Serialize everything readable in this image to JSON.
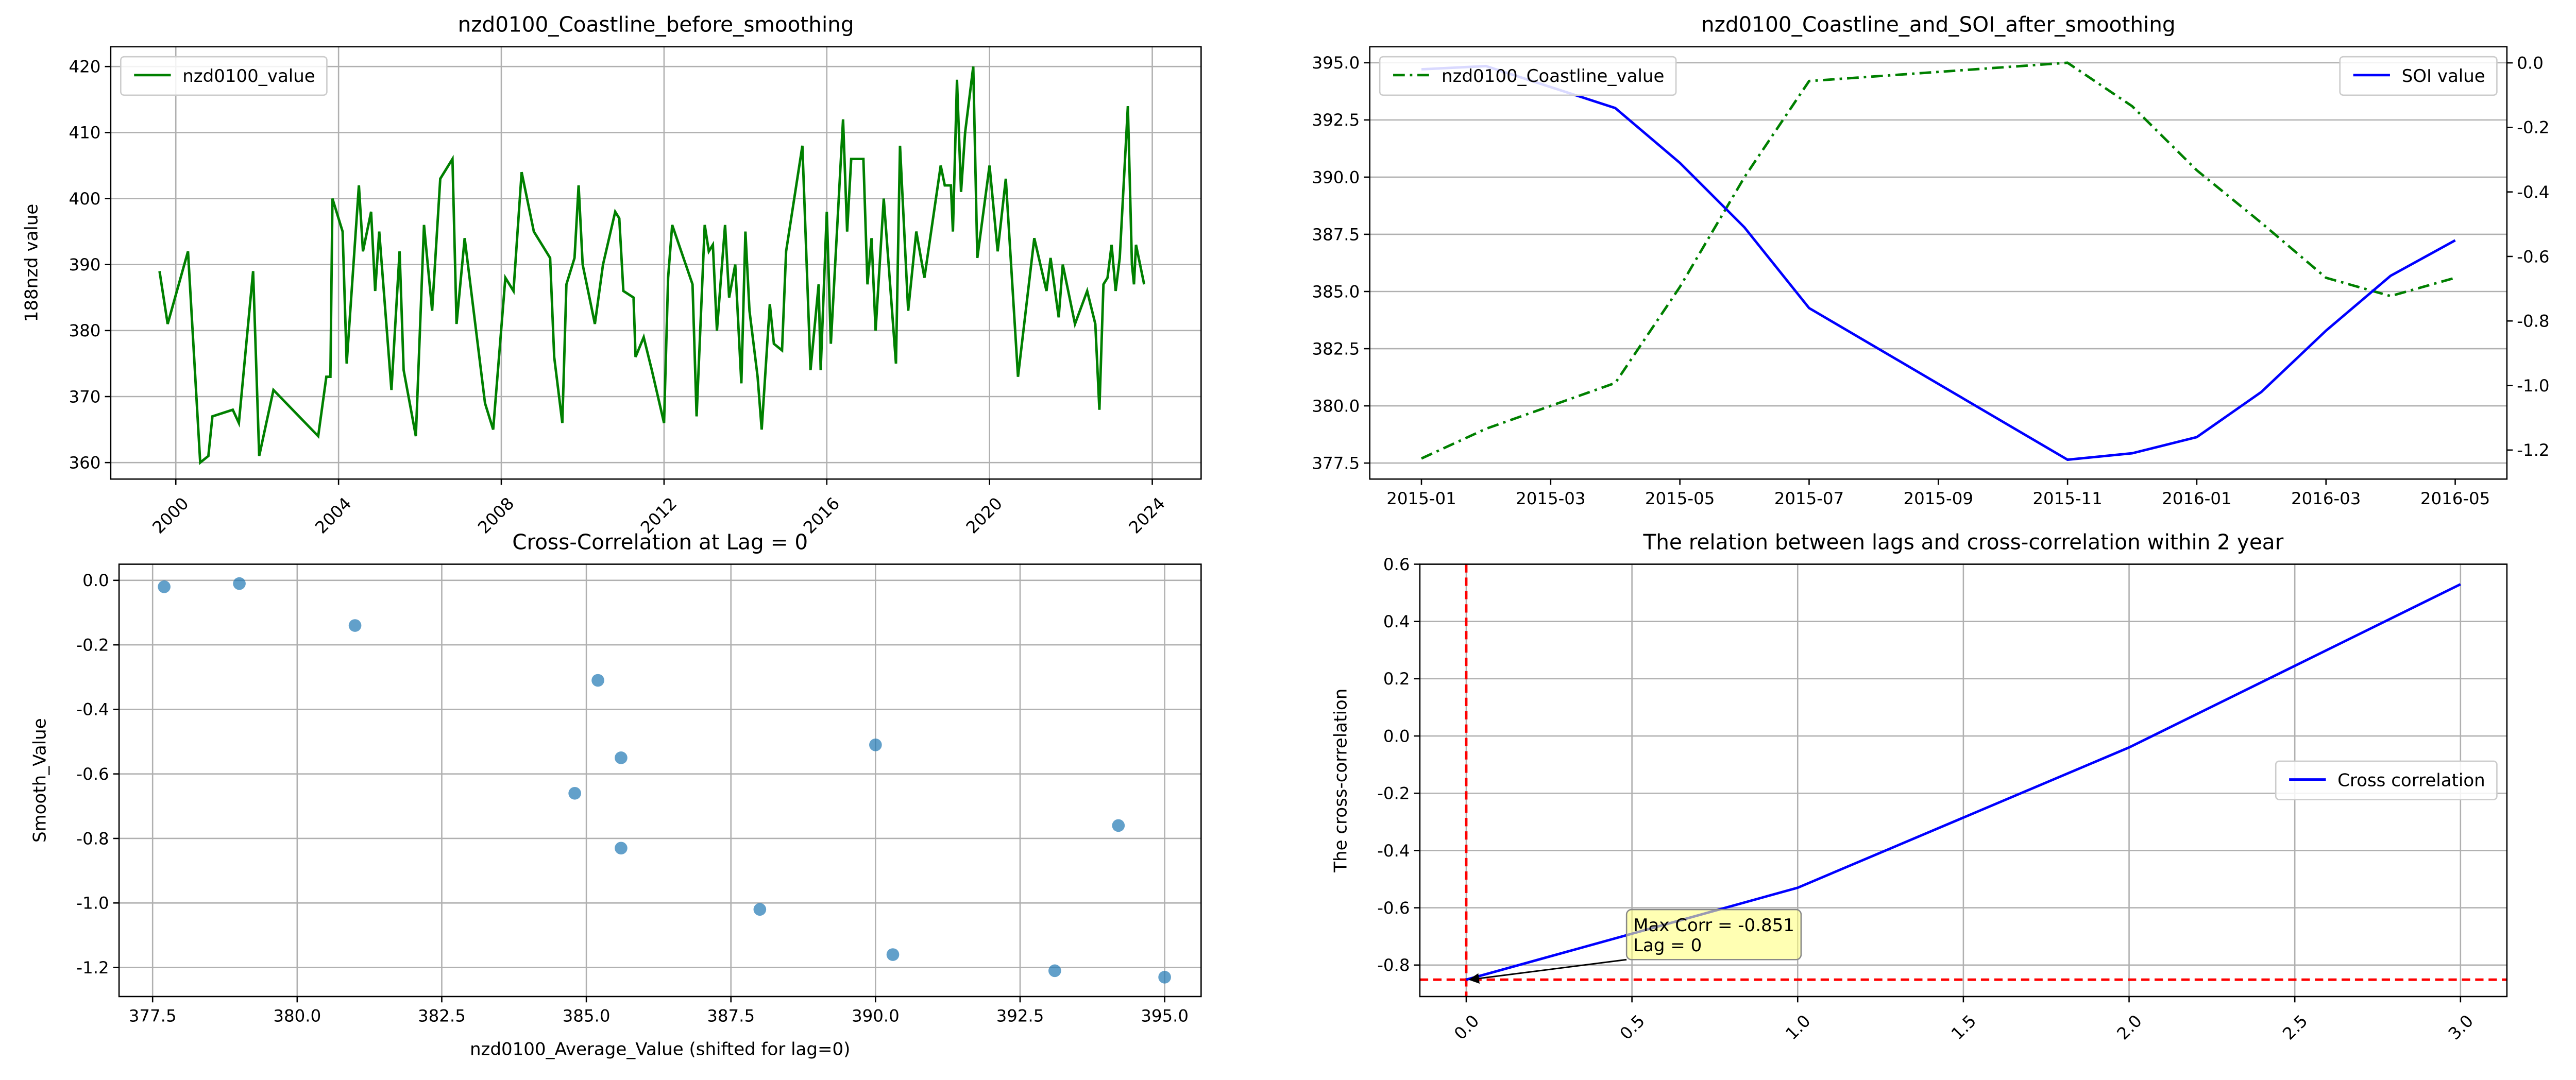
{
  "chart_data": [
    {
      "type": "line",
      "title": "nzd0100_Coastline_before_smoothing",
      "ylabel": "188nzd value",
      "x": [
        1999.6,
        1999.8,
        2000.3,
        2000.6,
        2000.8,
        2000.9,
        2001.4,
        2001.55,
        2001.9,
        2002.05,
        2002.4,
        2003.5,
        2003.7,
        2003.8,
        2003.85,
        2004.1,
        2004.2,
        2004.5,
        2004.6,
        2004.8,
        2004.9,
        2005.0,
        2005.3,
        2005.5,
        2005.6,
        2005.9,
        2006.1,
        2006.3,
        2006.5,
        2006.8,
        2006.9,
        2007.1,
        2007.6,
        2007.8,
        2008.1,
        2008.3,
        2008.5,
        2008.8,
        2009.2,
        2009.3,
        2009.5,
        2009.6,
        2009.8,
        2009.9,
        2010.0,
        2010.3,
        2010.5,
        2010.8,
        2010.9,
        2011.0,
        2011.25,
        2011.3,
        2011.5,
        2011.7,
        2012.0,
        2012.1,
        2012.2,
        2012.7,
        2012.8,
        2013.0,
        2013.1,
        2013.2,
        2013.3,
        2013.5,
        2013.6,
        2013.75,
        2013.9,
        2014.0,
        2014.1,
        2014.3,
        2014.4,
        2014.6,
        2014.7,
        2014.9,
        2015.0,
        2015.4,
        2015.6,
        2015.8,
        2015.85,
        2016.0,
        2016.1,
        2016.4,
        2016.5,
        2016.6,
        2016.9,
        2017.0,
        2017.1,
        2017.2,
        2017.4,
        2017.7,
        2017.8,
        2018.0,
        2018.1,
        2018.2,
        2018.4,
        2018.8,
        2018.9,
        2019.05,
        2019.1,
        2019.2,
        2019.3,
        2019.4,
        2019.6,
        2019.7,
        2020.0,
        2020.2,
        2020.4,
        2020.7,
        2021.1,
        2021.4,
        2021.5,
        2021.7,
        2021.8,
        2022.1,
        2022.4,
        2022.6,
        2022.7,
        2022.8,
        2022.9,
        2023.0,
        2023.1,
        2023.2,
        2023.4,
        2023.5,
        2023.55,
        2023.6,
        2023.8
      ],
      "series": [
        {
          "name": "nzd0100_value",
          "color": "#008000",
          "values": [
            389,
            381,
            392,
            360,
            361,
            367,
            368,
            366,
            389,
            361,
            371,
            364,
            373,
            373,
            400,
            395,
            375,
            402,
            392,
            398,
            386,
            395,
            371,
            392,
            374,
            364,
            396,
            383,
            403,
            406,
            381,
            394,
            369,
            365,
            388,
            386,
            404,
            395,
            391,
            376,
            366,
            387,
            391,
            402,
            390,
            381,
            390,
            398,
            397,
            386,
            385,
            376,
            379,
            374,
            366,
            388,
            396,
            387,
            367,
            396,
            392,
            393,
            380,
            396,
            385,
            390,
            372,
            395,
            383,
            373,
            365,
            384,
            378,
            377,
            392,
            408,
            374,
            387,
            374,
            398,
            378,
            412,
            395,
            406,
            406,
            387,
            394,
            380,
            400,
            375,
            408,
            383,
            389,
            395,
            388,
            405,
            402,
            402,
            395,
            418,
            401,
            410,
            420,
            391,
            405,
            392,
            403,
            373,
            394,
            386,
            391,
            382,
            390,
            381,
            386,
            381,
            368,
            387,
            388,
            393,
            386,
            391,
            414,
            390,
            387,
            393,
            387
          ]
        }
      ],
      "xlim": [
        1998.4,
        2025.2
      ],
      "xticks": [
        2000,
        2004,
        2008,
        2012,
        2016,
        2020,
        2024
      ],
      "xtick_rotation": 45,
      "ylim": [
        357.5,
        423
      ],
      "yticks": [
        360,
        370,
        380,
        390,
        400,
        410,
        420
      ],
      "grid": "both",
      "legend": "upper left"
    },
    {
      "type": "line",
      "title": "nzd0100_Coastline_and_SOI_after_smoothing",
      "y2label": "SOI value",
      "x": [
        "2015-01",
        "2015-02",
        "2015-04",
        "2015-05",
        "2015-06",
        "2015-07",
        "2015-11",
        "2015-12",
        "2016-01",
        "2016-02",
        "2016-03",
        "2016-04",
        "2016-05"
      ],
      "series": [
        {
          "name": "nzd0100_Coastline_value",
          "color": "#008000",
          "linestyle": "dashdot",
          "legend": "upper left",
          "values": [
            377.7,
            379.0,
            381.0,
            385.2,
            390.0,
            394.2,
            395.0,
            393.1,
            390.3,
            388.0,
            385.6,
            384.8,
            385.6
          ]
        },
        {
          "name": "SOI value",
          "color": "#0000ff",
          "axis": "y2",
          "legend": "upper right",
          "values": [
            -0.02,
            -0.01,
            -0.14,
            -0.31,
            -0.51,
            -0.76,
            -1.23,
            -1.21,
            -1.16,
            -1.02,
            -0.83,
            -0.66,
            -0.55
          ]
        }
      ],
      "xticks": [
        "2015-01",
        "2015-03",
        "2015-05",
        "2015-07",
        "2015-09",
        "2015-11",
        "2016-01",
        "2016-03",
        "2016-05"
      ],
      "ylim": [
        376.8,
        395.7
      ],
      "yticks": [
        377.5,
        {
          "value": 380,
          "label": "380.0"
        },
        382.5,
        {
          "value": 385,
          "label": "385.0"
        },
        387.5,
        {
          "value": 390,
          "label": "390.0"
        },
        392.5,
        {
          "value": 395,
          "label": "395.0"
        }
      ],
      "y2lim": [
        -1.29,
        0.05
      ],
      "y2ticks": [
        {
          "value": 0,
          "label": "0.0"
        },
        -0.2,
        -0.4,
        -0.6,
        -0.8,
        {
          "value": -1,
          "label": "-1.0"
        },
        -1.2
      ],
      "grid": "y"
    },
    {
      "type": "scatter",
      "title": "Cross-Correlation at Lag = 0",
      "xlabel": "nzd0100_Average_Value (shifted for lag=0)",
      "ylabel": "Smooth_Value",
      "x": [
        377.7,
        379.0,
        381.0,
        385.2,
        390.0,
        394.2,
        395.0,
        393.1,
        390.3,
        388.0,
        385.6,
        384.8,
        385.6
      ],
      "values": [
        -0.02,
        -0.01,
        -0.14,
        -0.31,
        -0.51,
        -0.76,
        -1.23,
        -1.21,
        -1.16,
        -1.02,
        -0.83,
        -0.66,
        -0.55
      ],
      "color": "#1f77b4",
      "xlim": [
        376.92,
        395.63
      ],
      "xticks": [
        377.5,
        {
          "value": 380,
          "label": "380.0"
        },
        382.5,
        {
          "value": 385,
          "label": "385.0"
        },
        387.5,
        {
          "value": 390,
          "label": "390.0"
        },
        392.5,
        {
          "value": 395,
          "label": "395.0"
        }
      ],
      "ylim": [
        -1.29,
        0.05
      ],
      "yticks": [
        {
          "value": 0,
          "label": "0.0"
        },
        -0.2,
        -0.4,
        -0.6,
        -0.8,
        {
          "value": -1,
          "label": "-1.0"
        },
        -1.2
      ],
      "grid": "both"
    },
    {
      "type": "line",
      "title": "The relation between lags and cross-correlation within 2 year",
      "ylabel": "The cross-correlation",
      "x": [
        0,
        1,
        2,
        3
      ],
      "series": [
        {
          "name": "Cross correlation",
          "color": "#0000ff",
          "values": [
            -0.851,
            -0.53,
            -0.04,
            0.53
          ]
        }
      ],
      "xlim": [
        -0.14,
        3.14
      ],
      "xticks": [
        {
          "value": 0,
          "label": "0.0"
        },
        0.5,
        {
          "value": 1,
          "label": "1.0"
        },
        1.5,
        {
          "value": 2,
          "label": "2.0"
        },
        2.5,
        {
          "value": 3,
          "label": "3.0"
        }
      ],
      "xtick_rotation": 45,
      "ylim": [
        -0.91,
        0.6
      ],
      "yticks": [
        -0.8,
        -0.6,
        -0.4,
        -0.2,
        {
          "value": 0,
          "label": "0.0"
        },
        0.2,
        0.4,
        0.6
      ],
      "grid": "both",
      "legend": "center right",
      "vline": 0,
      "hline": -0.851,
      "reference_color": "#ff0000",
      "annotation": [
        "Max Corr = -0.851",
        "Lag = 0"
      ]
    }
  ]
}
